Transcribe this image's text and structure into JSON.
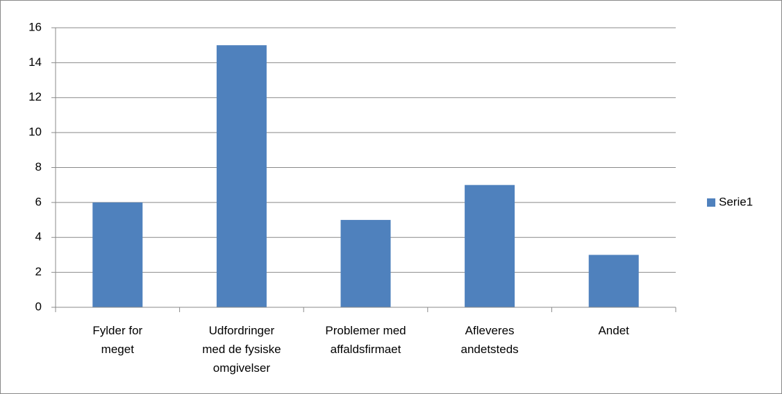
{
  "chart_data": {
    "type": "bar",
    "categories": [
      "Fylder for meget",
      "Udfordringer med de fysiske omgivelser",
      "Problemer med affaldsfirmaet",
      "Afleveres andetsteds",
      "Andet"
    ],
    "series": [
      {
        "name": "Serie1",
        "color": "#4f81bd",
        "values": [
          6,
          15,
          5,
          7,
          3
        ]
      }
    ],
    "ylim": [
      0,
      16
    ],
    "yticks": [
      0,
      2,
      4,
      6,
      8,
      10,
      12,
      14,
      16
    ],
    "grid": true,
    "legend": "right"
  }
}
